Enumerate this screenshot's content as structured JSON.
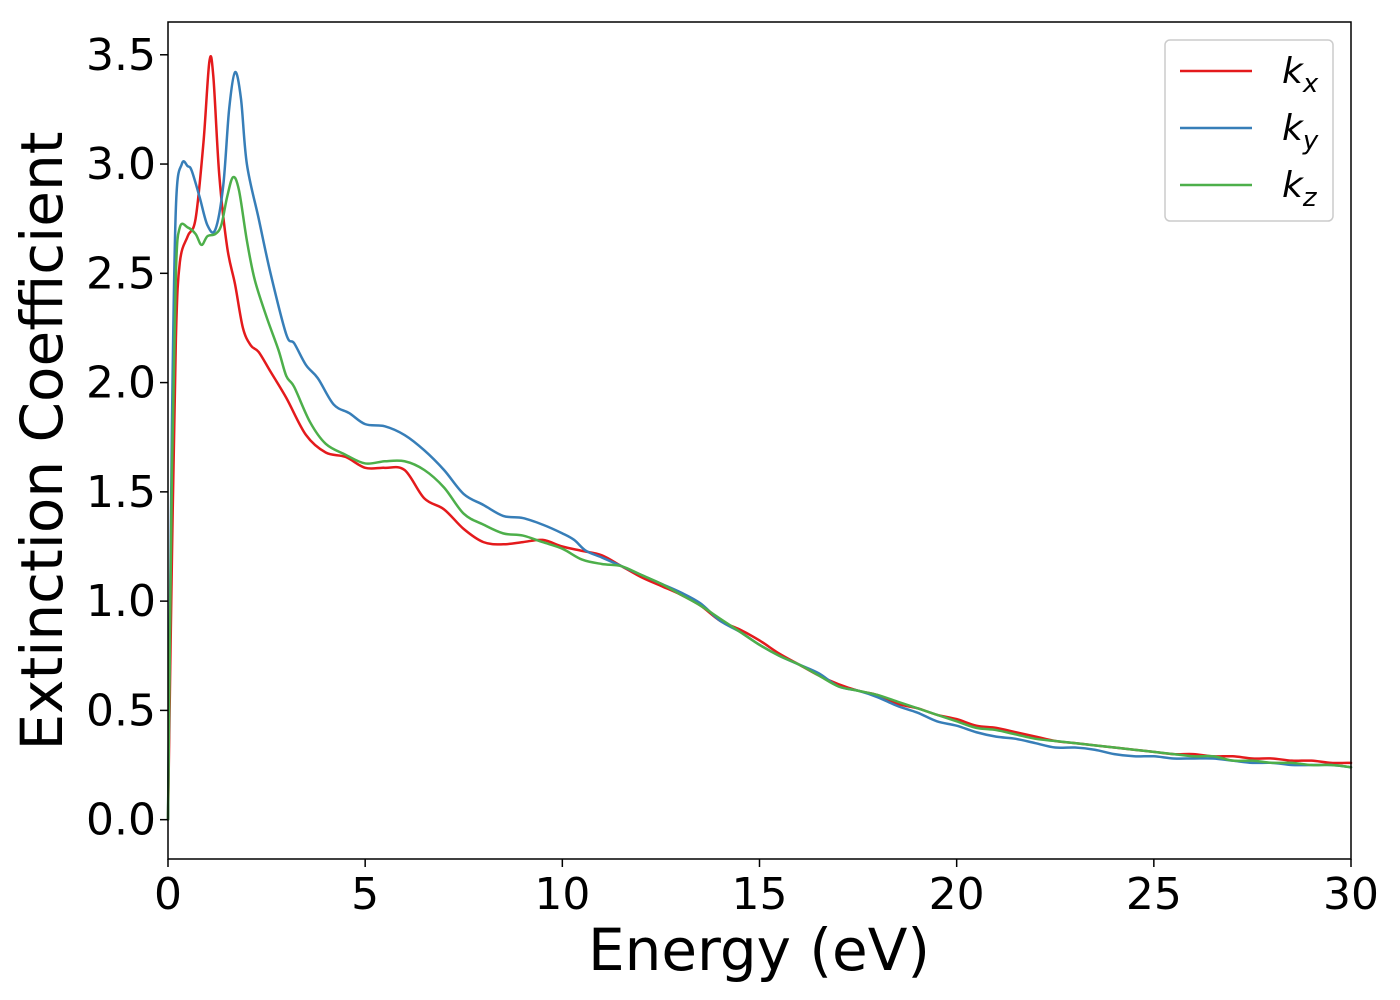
{
  "chart_data": {
    "type": "line",
    "title": "",
    "xlabel": "Energy (eV)",
    "ylabel": "Extinction Coefficient",
    "xlim": [
      0,
      30
    ],
    "ylim": [
      -0.18,
      3.65
    ],
    "xticks": [
      0,
      5,
      10,
      15,
      20,
      25,
      30
    ],
    "yticks": [
      0.0,
      0.5,
      1.0,
      1.5,
      2.0,
      2.5,
      3.0,
      3.5
    ],
    "xtick_labels": [
      "0",
      "5",
      "10",
      "15",
      "20",
      "25",
      "30"
    ],
    "ytick_labels": [
      "0.0",
      "0.5",
      "1.0",
      "1.5",
      "2.0",
      "2.5",
      "3.0",
      "3.5"
    ],
    "grid": false,
    "legend_position": "top-right",
    "series": [
      {
        "name": "k",
        "subscript": "x",
        "color": "#e41a1c",
        "points": [
          [
            0,
            0.0
          ],
          [
            0.1,
            1.2
          ],
          [
            0.2,
            2.2
          ],
          [
            0.3,
            2.55
          ],
          [
            0.5,
            2.67
          ],
          [
            0.7,
            2.75
          ],
          [
            0.9,
            3.1
          ],
          [
            1.05,
            3.47
          ],
          [
            1.15,
            3.4
          ],
          [
            1.3,
            2.95
          ],
          [
            1.5,
            2.62
          ],
          [
            1.7,
            2.45
          ],
          [
            1.9,
            2.25
          ],
          [
            2.1,
            2.17
          ],
          [
            2.3,
            2.14
          ],
          [
            2.6,
            2.05
          ],
          [
            3.0,
            1.93
          ],
          [
            3.5,
            1.76
          ],
          [
            4.0,
            1.68
          ],
          [
            4.5,
            1.66
          ],
          [
            5.0,
            1.61
          ],
          [
            5.5,
            1.61
          ],
          [
            6.0,
            1.6
          ],
          [
            6.5,
            1.47
          ],
          [
            7.0,
            1.42
          ],
          [
            7.5,
            1.33
          ],
          [
            8.0,
            1.27
          ],
          [
            8.5,
            1.26
          ],
          [
            9.0,
            1.27
          ],
          [
            9.5,
            1.28
          ],
          [
            10.0,
            1.25
          ],
          [
            10.5,
            1.23
          ],
          [
            11.0,
            1.21
          ],
          [
            11.5,
            1.16
          ],
          [
            12.0,
            1.11
          ],
          [
            12.5,
            1.07
          ],
          [
            13.0,
            1.03
          ],
          [
            13.5,
            0.98
          ],
          [
            14.0,
            0.91
          ],
          [
            14.5,
            0.87
          ],
          [
            15.0,
            0.82
          ],
          [
            15.5,
            0.76
          ],
          [
            16.0,
            0.71
          ],
          [
            16.5,
            0.66
          ],
          [
            17.0,
            0.62
          ],
          [
            17.5,
            0.59
          ],
          [
            18.0,
            0.57
          ],
          [
            18.5,
            0.53
          ],
          [
            19.0,
            0.51
          ],
          [
            19.5,
            0.48
          ],
          [
            20.0,
            0.46
          ],
          [
            20.5,
            0.43
          ],
          [
            21.0,
            0.42
          ],
          [
            21.5,
            0.4
          ],
          [
            22.0,
            0.38
          ],
          [
            22.5,
            0.36
          ],
          [
            23.0,
            0.35
          ],
          [
            23.5,
            0.34
          ],
          [
            24.0,
            0.33
          ],
          [
            24.5,
            0.32
          ],
          [
            25.0,
            0.31
          ],
          [
            25.5,
            0.3
          ],
          [
            26.0,
            0.3
          ],
          [
            26.5,
            0.29
          ],
          [
            27.0,
            0.29
          ],
          [
            27.5,
            0.28
          ],
          [
            28.0,
            0.28
          ],
          [
            28.5,
            0.27
          ],
          [
            29.0,
            0.27
          ],
          [
            29.5,
            0.26
          ],
          [
            30.0,
            0.26
          ]
        ]
      },
      {
        "name": "k",
        "subscript": "y",
        "color": "#377eb8",
        "points": [
          [
            0,
            0.0
          ],
          [
            0.1,
            1.8
          ],
          [
            0.2,
            2.8
          ],
          [
            0.35,
            3.0
          ],
          [
            0.5,
            2.99
          ],
          [
            0.6,
            2.97
          ],
          [
            0.8,
            2.85
          ],
          [
            1.0,
            2.72
          ],
          [
            1.2,
            2.7
          ],
          [
            1.4,
            2.9
          ],
          [
            1.55,
            3.25
          ],
          [
            1.7,
            3.42
          ],
          [
            1.85,
            3.3
          ],
          [
            2.0,
            3.0
          ],
          [
            2.3,
            2.75
          ],
          [
            2.6,
            2.5
          ],
          [
            3.0,
            2.22
          ],
          [
            3.2,
            2.18
          ],
          [
            3.5,
            2.08
          ],
          [
            3.8,
            2.02
          ],
          [
            4.2,
            1.9
          ],
          [
            4.6,
            1.86
          ],
          [
            5.0,
            1.81
          ],
          [
            5.5,
            1.8
          ],
          [
            6.0,
            1.76
          ],
          [
            6.5,
            1.69
          ],
          [
            7.0,
            1.6
          ],
          [
            7.5,
            1.49
          ],
          [
            8.0,
            1.44
          ],
          [
            8.5,
            1.39
          ],
          [
            9.0,
            1.38
          ],
          [
            9.5,
            1.35
          ],
          [
            10.0,
            1.31
          ],
          [
            10.3,
            1.28
          ],
          [
            10.6,
            1.23
          ],
          [
            11.0,
            1.2
          ],
          [
            11.5,
            1.16
          ],
          [
            12.0,
            1.12
          ],
          [
            12.5,
            1.08
          ],
          [
            13.0,
            1.04
          ],
          [
            13.5,
            0.99
          ],
          [
            14.0,
            0.91
          ],
          [
            14.5,
            0.86
          ],
          [
            15.0,
            0.8
          ],
          [
            15.5,
            0.75
          ],
          [
            16.0,
            0.71
          ],
          [
            16.5,
            0.67
          ],
          [
            17.0,
            0.61
          ],
          [
            17.5,
            0.59
          ],
          [
            18.0,
            0.56
          ],
          [
            18.5,
            0.52
          ],
          [
            19.0,
            0.49
          ],
          [
            19.5,
            0.45
          ],
          [
            20.0,
            0.43
          ],
          [
            20.5,
            0.4
          ],
          [
            21.0,
            0.38
          ],
          [
            21.5,
            0.37
          ],
          [
            22.0,
            0.35
          ],
          [
            22.5,
            0.33
          ],
          [
            23.0,
            0.33
          ],
          [
            23.5,
            0.32
          ],
          [
            24.0,
            0.3
          ],
          [
            24.5,
            0.29
          ],
          [
            25.0,
            0.29
          ],
          [
            25.5,
            0.28
          ],
          [
            26.0,
            0.28
          ],
          [
            26.5,
            0.28
          ],
          [
            27.0,
            0.27
          ],
          [
            27.5,
            0.26
          ],
          [
            28.0,
            0.26
          ],
          [
            28.5,
            0.25
          ],
          [
            29.0,
            0.25
          ],
          [
            29.5,
            0.25
          ],
          [
            30.0,
            0.24
          ]
        ]
      },
      {
        "name": "k",
        "subscript": "z",
        "color": "#4daf4a",
        "points": [
          [
            0,
            0.0
          ],
          [
            0.1,
            1.6
          ],
          [
            0.2,
            2.5
          ],
          [
            0.3,
            2.71
          ],
          [
            0.5,
            2.71
          ],
          [
            0.7,
            2.68
          ],
          [
            0.85,
            2.63
          ],
          [
            1.0,
            2.67
          ],
          [
            1.2,
            2.68
          ],
          [
            1.35,
            2.72
          ],
          [
            1.5,
            2.85
          ],
          [
            1.65,
            2.94
          ],
          [
            1.8,
            2.88
          ],
          [
            2.0,
            2.65
          ],
          [
            2.2,
            2.47
          ],
          [
            2.5,
            2.3
          ],
          [
            2.8,
            2.15
          ],
          [
            3.0,
            2.03
          ],
          [
            3.2,
            1.98
          ],
          [
            3.6,
            1.82
          ],
          [
            4.0,
            1.72
          ],
          [
            4.5,
            1.67
          ],
          [
            5.0,
            1.63
          ],
          [
            5.5,
            1.64
          ],
          [
            6.0,
            1.64
          ],
          [
            6.5,
            1.6
          ],
          [
            7.0,
            1.52
          ],
          [
            7.5,
            1.4
          ],
          [
            8.0,
            1.35
          ],
          [
            8.5,
            1.31
          ],
          [
            9.0,
            1.3
          ],
          [
            9.5,
            1.27
          ],
          [
            10.0,
            1.24
          ],
          [
            10.5,
            1.19
          ],
          [
            11.0,
            1.17
          ],
          [
            11.5,
            1.16
          ],
          [
            12.0,
            1.12
          ],
          [
            12.5,
            1.08
          ],
          [
            13.0,
            1.03
          ],
          [
            13.5,
            0.98
          ],
          [
            14.0,
            0.92
          ],
          [
            14.5,
            0.86
          ],
          [
            15.0,
            0.8
          ],
          [
            15.5,
            0.75
          ],
          [
            16.0,
            0.71
          ],
          [
            16.5,
            0.66
          ],
          [
            17.0,
            0.61
          ],
          [
            17.5,
            0.59
          ],
          [
            18.0,
            0.57
          ],
          [
            18.5,
            0.54
          ],
          [
            19.0,
            0.51
          ],
          [
            19.5,
            0.48
          ],
          [
            20.0,
            0.45
          ],
          [
            20.5,
            0.42
          ],
          [
            21.0,
            0.41
          ],
          [
            21.5,
            0.39
          ],
          [
            22.0,
            0.37
          ],
          [
            22.5,
            0.36
          ],
          [
            23.0,
            0.35
          ],
          [
            23.5,
            0.34
          ],
          [
            24.0,
            0.33
          ],
          [
            24.5,
            0.32
          ],
          [
            25.0,
            0.31
          ],
          [
            25.5,
            0.3
          ],
          [
            26.0,
            0.29
          ],
          [
            26.5,
            0.29
          ],
          [
            27.0,
            0.27
          ],
          [
            27.5,
            0.27
          ],
          [
            28.0,
            0.26
          ],
          [
            28.5,
            0.26
          ],
          [
            29.0,
            0.25
          ],
          [
            29.5,
            0.25
          ],
          [
            30.0,
            0.24
          ]
        ]
      }
    ]
  }
}
